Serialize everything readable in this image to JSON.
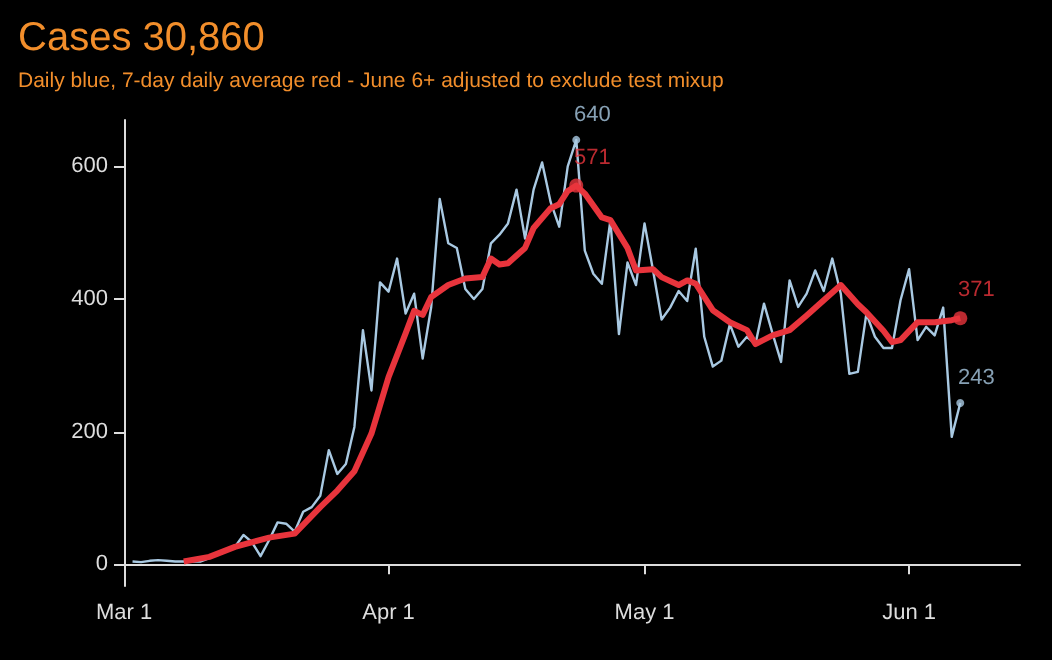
{
  "chart_data": {
    "type": "line",
    "title": "Cases 30,860",
    "subtitle": "Daily blue, 7-day daily average red - June 6+ adjusted to exclude test mixup",
    "xlim": [
      "--03-01",
      "--06-14"
    ],
    "xticks": [
      {
        "value": "--03-01",
        "label": "Mar 1"
      },
      {
        "value": "--04-01",
        "label": "Apr 1"
      },
      {
        "value": "--05-01",
        "label": "May 1"
      },
      {
        "value": "--06-01",
        "label": "Jun 1"
      }
    ],
    "ylim": [
      -33,
      670
    ],
    "yticks": [
      0,
      200,
      400,
      600
    ],
    "grid": false,
    "legend": false,
    "series": [
      {
        "color": "#a9c9e2",
        "x": [
          "--03-02",
          "--03-03",
          "--03-04",
          "--03-05",
          "--03-06",
          "--03-07",
          "--03-08",
          "--03-09",
          "--03-10",
          "--03-11",
          "--03-12",
          "--03-13",
          "--03-14",
          "--03-15",
          "--03-16",
          "--03-17",
          "--03-18",
          "--03-19",
          "--03-20",
          "--03-21",
          "--03-22",
          "--03-23",
          "--03-24",
          "--03-25",
          "--03-26",
          "--03-27",
          "--03-28",
          "--03-29",
          "--03-30",
          "--03-31",
          "--04-01",
          "--04-02",
          "--04-03",
          "--04-04",
          "--04-05",
          "--04-06",
          "--04-07",
          "--04-08",
          "--04-09",
          "--04-10",
          "--04-11",
          "--04-12",
          "--04-13",
          "--04-14",
          "--04-15",
          "--04-16",
          "--04-17",
          "--04-18",
          "--04-19",
          "--04-20",
          "--04-21",
          "--04-22",
          "--04-23",
          "--04-24",
          "--04-25",
          "--04-26",
          "--04-27",
          "--04-28",
          "--04-29",
          "--04-30",
          "--05-01",
          "--05-02",
          "--05-03",
          "--05-04",
          "--05-05",
          "--05-06",
          "--05-07",
          "--05-08",
          "--05-09",
          "--05-10",
          "--05-11",
          "--05-12",
          "--05-13",
          "--05-14",
          "--05-15",
          "--05-16",
          "--05-17",
          "--05-18",
          "--05-19",
          "--05-20",
          "--05-21",
          "--05-22",
          "--05-23",
          "--05-24",
          "--05-25",
          "--05-26",
          "--05-27",
          "--05-28",
          "--05-29",
          "--05-30",
          "--05-31",
          "--06-01",
          "--06-02",
          "--06-03",
          "--06-04",
          "--06-05",
          "--06-06",
          "--06-07"
        ],
        "values": [
          4,
          3,
          5,
          6,
          5,
          4,
          4,
          4,
          4,
          9,
          16,
          21,
          26,
          44,
          33,
          12,
          36,
          63,
          61,
          49,
          79,
          86,
          103,
          172,
          136,
          151,
          207,
          353,
          262,
          425,
          411,
          461,
          378,
          408,
          310,
          388,
          551,
          484,
          477,
          415,
          400,
          415,
          484,
          497,
          514,
          565,
          491,
          565,
          606,
          546,
          509,
          600,
          640,
          473,
          438,
          423,
          519,
          347,
          455,
          421,
          514,
          443,
          369,
          387,
          412,
          397,
          476,
          343,
          298,
          307,
          362,
          328,
          343,
          332,
          393,
          348,
          305,
          428,
          388,
          408,
          443,
          412,
          461,
          408,
          287,
          290,
          378,
          343,
          326,
          326,
          398,
          445,
          338,
          358,
          345,
          387,
          192,
          243
        ]
      },
      {
        "color": "#e8343c",
        "x": [
          "--03-08",
          "--03-11",
          "--03-14",
          "--03-18",
          "--03-21",
          "--03-24",
          "--03-26",
          "--03-28",
          "--03-30",
          "--04-01",
          "--04-03",
          "--04-04",
          "--04-05",
          "--04-06",
          "--04-08",
          "--04-10",
          "--04-12",
          "--04-13",
          "--04-14",
          "--04-15",
          "--04-17",
          "--04-18",
          "--04-20",
          "--04-21",
          "--04-22",
          "--04-23",
          "--04-24",
          "--04-26",
          "--04-27",
          "--04-29",
          "--04-30",
          "--05-02",
          "--05-03",
          "--05-05",
          "--05-06",
          "--05-07",
          "--05-09",
          "--05-11",
          "--05-13",
          "--05-14",
          "--05-16",
          "--05-18",
          "--05-20",
          "--05-22",
          "--05-24",
          "--05-26",
          "--05-27",
          "--05-29",
          "--05-30",
          "--05-31",
          "--06-02",
          "--06-04",
          "--06-06",
          "--06-07"
        ],
        "values": [
          4,
          11,
          26,
          40,
          46,
          86,
          111,
          140,
          197,
          282,
          348,
          382,
          376,
          403,
          421,
          431,
          433,
          461,
          452,
          454,
          477,
          507,
          537,
          543,
          563,
          571,
          559,
          523,
          519,
          477,
          443,
          445,
          433,
          421,
          428,
          423,
          383,
          365,
          353,
          332,
          345,
          353,
          375,
          398,
          421,
          392,
          380,
          352,
          335,
          338,
          365,
          365,
          368,
          371
        ]
      }
    ],
    "annotations": [
      {
        "text": "640",
        "x": "--04-23",
        "y": 640
      },
      {
        "text": "571",
        "x": "--04-23",
        "y": 571
      },
      {
        "text": "371",
        "x": "--06-07",
        "y": 371
      },
      {
        "text": "243",
        "x": "--06-07",
        "y": 243
      }
    ]
  }
}
